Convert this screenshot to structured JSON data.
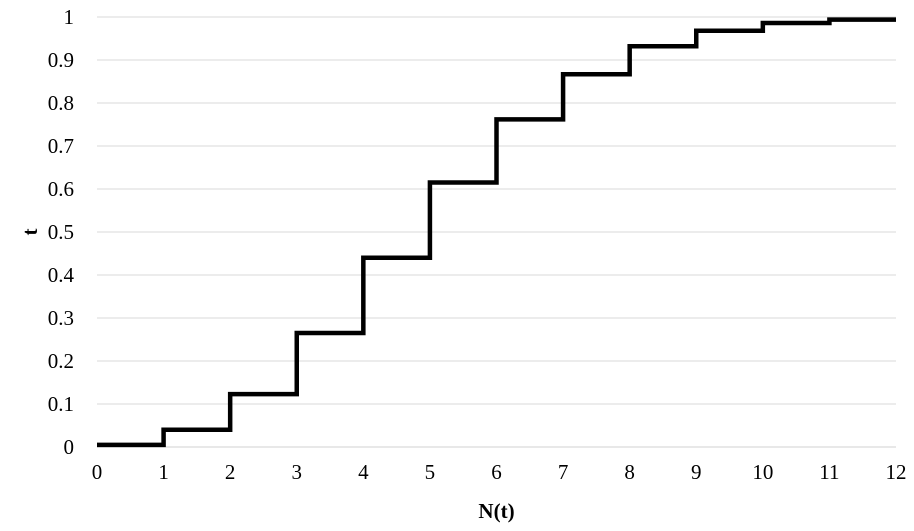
{
  "chart_data": {
    "type": "line",
    "step": true,
    "xlabel": "N(t)",
    "ylabel": "t",
    "xlim": [
      0,
      12
    ],
    "ylim": [
      0,
      1
    ],
    "x_ticks": [
      0,
      1,
      2,
      3,
      4,
      5,
      6,
      7,
      8,
      9,
      10,
      11,
      12
    ],
    "y_ticks": [
      0,
      0.1,
      0.2,
      0.3,
      0.4,
      0.5,
      0.6,
      0.7,
      0.8,
      0.9,
      1
    ],
    "grid": "horizontal",
    "legend": "none",
    "line_color": "#000000",
    "grid_color": "#d9d9d9",
    "series": [
      {
        "x": [
          0,
          1,
          2,
          3,
          4,
          5,
          6,
          7,
          8,
          9,
          10,
          11,
          12
        ],
        "values": [
          0.005,
          0.04,
          0.123,
          0.265,
          0.44,
          0.615,
          0.762,
          0.867,
          0.932,
          0.968,
          0.986,
          0.994,
          0.994
        ]
      }
    ]
  }
}
